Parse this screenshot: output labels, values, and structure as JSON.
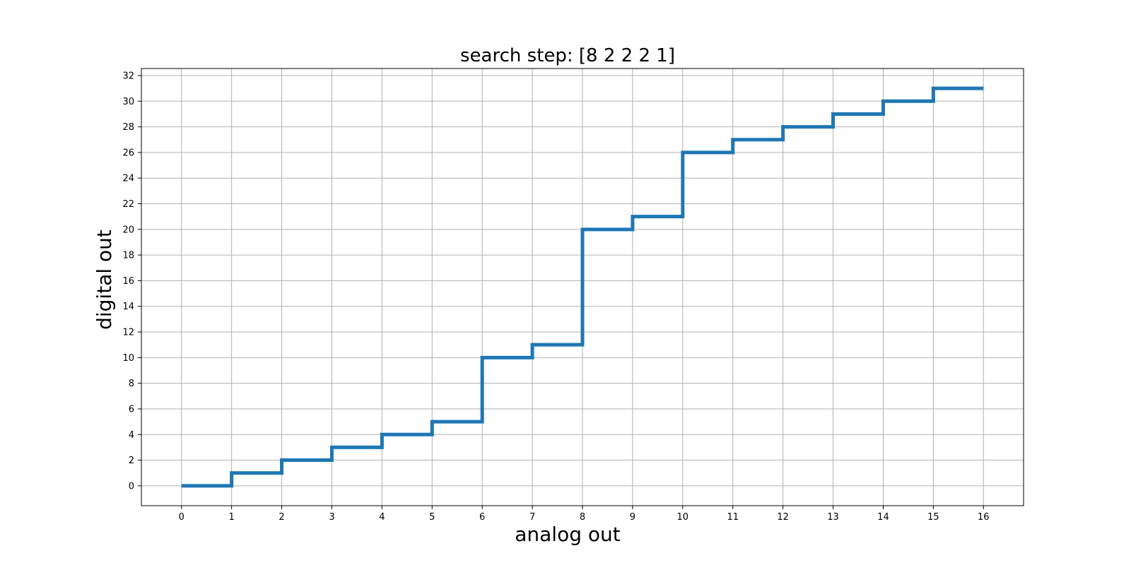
{
  "chart_data": {
    "type": "line",
    "title": "search step: [8 2 2 2 1]",
    "xlabel": "analog out",
    "ylabel": "digital out",
    "xlim": [
      -0.8,
      16.8
    ],
    "ylim": [
      -1.55,
      32.55
    ],
    "xticks": [
      0,
      1,
      2,
      3,
      4,
      5,
      6,
      7,
      8,
      9,
      10,
      11,
      12,
      13,
      14,
      15,
      16
    ],
    "yticks": [
      0,
      2,
      4,
      6,
      8,
      10,
      12,
      14,
      16,
      18,
      20,
      22,
      24,
      26,
      28,
      30,
      32
    ],
    "grid": true,
    "step": "post",
    "series": [
      {
        "color": "#1f77b4",
        "x": [
          0,
          1,
          2,
          3,
          4,
          5,
          6,
          7,
          8,
          9,
          10,
          11,
          12,
          13,
          14,
          15,
          16
        ],
        "y": [
          0,
          1,
          2,
          3,
          4,
          5,
          10,
          11,
          20,
          21,
          26,
          27,
          28,
          29,
          30,
          31,
          31
        ]
      }
    ]
  }
}
